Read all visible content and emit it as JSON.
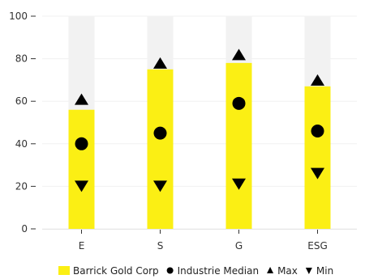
{
  "chart_data": {
    "type": "bar",
    "categories": [
      "E",
      "S",
      "G",
      "ESG"
    ],
    "ylim": [
      0,
      100
    ],
    "yticks": [
      0,
      20,
      40,
      60,
      80,
      100
    ],
    "grid": true,
    "legend_position": "bottom",
    "series": [
      {
        "name": "Barrick Gold Corp",
        "kind": "bar",
        "values": [
          56,
          75,
          78,
          67
        ],
        "color": "#fbef14"
      },
      {
        "name": "Industrie Median",
        "kind": "circle",
        "values": [
          40,
          45,
          59,
          46
        ],
        "color": "#000000"
      },
      {
        "name": "Max",
        "kind": "triangle-up",
        "values": [
          61,
          78,
          82,
          70
        ],
        "color": "#000000"
      },
      {
        "name": "Min",
        "kind": "triangle-down",
        "values": [
          20,
          20,
          21,
          26
        ],
        "color": "#000000"
      }
    ],
    "range_band": {
      "values": [
        100,
        100,
        100,
        100
      ],
      "color": "#f2f2f2"
    }
  }
}
